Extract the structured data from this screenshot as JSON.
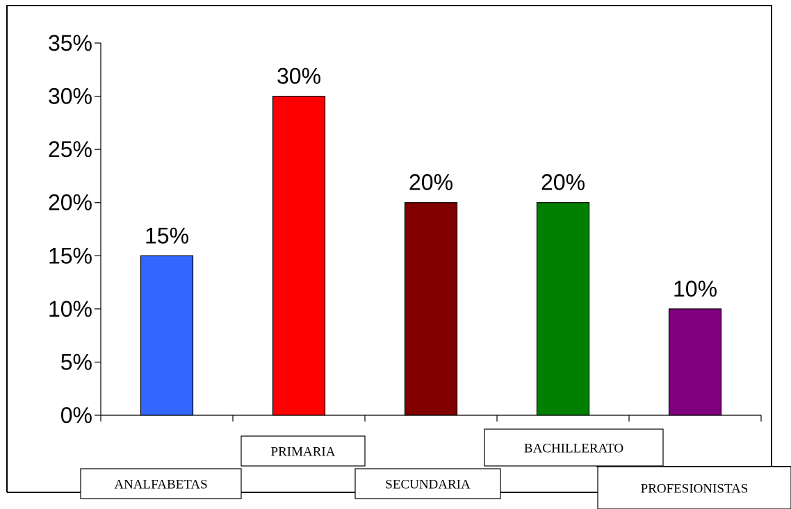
{
  "chart_data": {
    "type": "bar",
    "title": "",
    "xlabel": "",
    "ylabel": "",
    "categories": [
      "ANALFABETAS",
      "PRIMARIA",
      "SECUNDARIA",
      "BACHILLERATO",
      "PROFESIONISTAS"
    ],
    "values": [
      15,
      30,
      20,
      20,
      10
    ],
    "value_labels": [
      "15%",
      "30%",
      "20%",
      "20%",
      "10%"
    ],
    "bar_colors": [
      "#3366ff",
      "#ff0000",
      "#800000",
      "#008000",
      "#800080"
    ],
    "ylim": [
      0,
      35
    ],
    "yticks": [
      0,
      5,
      10,
      15,
      20,
      25,
      30,
      35
    ],
    "ytick_labels": [
      "0%",
      "5%",
      "10%",
      "15%",
      "20%",
      "25%",
      "30%",
      "35%"
    ],
    "grid": false,
    "legend": "none"
  }
}
